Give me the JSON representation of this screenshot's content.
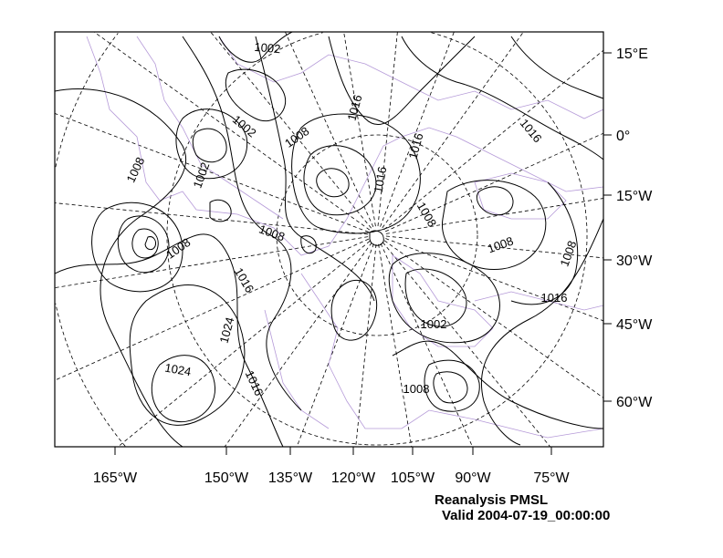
{
  "title": "Reanalysis PMSL",
  "subtitle": "Valid 2004-07-19_00:00:00",
  "colors": {
    "contour": "#000000",
    "coastline": "#b59ad8",
    "graticule": "#000000"
  },
  "map": {
    "projection": "polar stereographic",
    "contour_interval_labels_hPa": [
      1002,
      1008,
      1016,
      1024
    ],
    "right_axis_labels": [
      "15°E",
      "0°",
      "15°W",
      "30°W",
      "45°W",
      "60°W"
    ],
    "bottom_axis_labels": [
      "165°W",
      "150°W",
      "135°W",
      "120°W",
      "105°W",
      "90°W",
      "75°W"
    ],
    "contour_labels": [
      "1002",
      "1002",
      "1008",
      "1016",
      "1016",
      "1016",
      "1008",
      "1002",
      "1016",
      "1008",
      "1008",
      "1008",
      "1008",
      "1008",
      "1016",
      "1016",
      "1024",
      "1002",
      "1024",
      "1016",
      "1008"
    ]
  }
}
